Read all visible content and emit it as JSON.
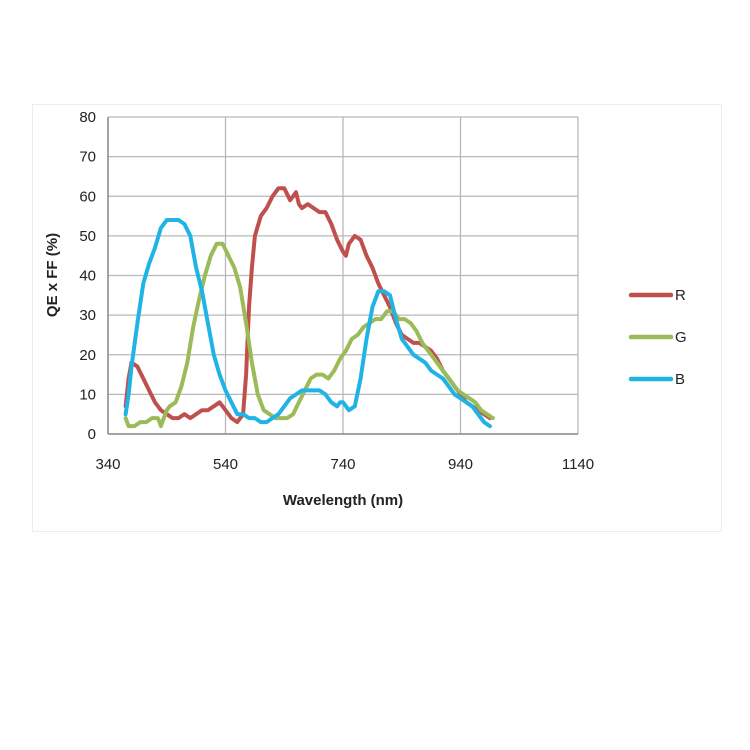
{
  "chart_data": {
    "type": "line",
    "title": "",
    "xlabel": "Wavelength (nm)",
    "ylabel": "QE x FF (%)",
    "xlim": [
      340,
      1140
    ],
    "ylim": [
      0,
      80
    ],
    "xticks": [
      340,
      540,
      740,
      940,
      1140
    ],
    "yticks": [
      0,
      10,
      20,
      30,
      40,
      50,
      60,
      70,
      80
    ],
    "grid": true,
    "legend": "right",
    "series": [
      {
        "name": "R",
        "color": "#c0504d",
        "points": [
          [
            370,
            7
          ],
          [
            375,
            14
          ],
          [
            380,
            18
          ],
          [
            390,
            17
          ],
          [
            400,
            14
          ],
          [
            410,
            11
          ],
          [
            420,
            8
          ],
          [
            430,
            6
          ],
          [
            440,
            5
          ],
          [
            450,
            4
          ],
          [
            460,
            4
          ],
          [
            470,
            5
          ],
          [
            480,
            4
          ],
          [
            490,
            5
          ],
          [
            500,
            6
          ],
          [
            510,
            6
          ],
          [
            520,
            7
          ],
          [
            530,
            8
          ],
          [
            540,
            6
          ],
          [
            550,
            4
          ],
          [
            560,
            3
          ],
          [
            570,
            5
          ],
          [
            575,
            15
          ],
          [
            580,
            32
          ],
          [
            585,
            42
          ],
          [
            590,
            50
          ],
          [
            600,
            55
          ],
          [
            610,
            57
          ],
          [
            620,
            60
          ],
          [
            630,
            62
          ],
          [
            640,
            62
          ],
          [
            650,
            59
          ],
          [
            655,
            60
          ],
          [
            660,
            61
          ],
          [
            665,
            58
          ],
          [
            670,
            57
          ],
          [
            680,
            58
          ],
          [
            690,
            57
          ],
          [
            700,
            56
          ],
          [
            710,
            56
          ],
          [
            720,
            53
          ],
          [
            730,
            49
          ],
          [
            740,
            46
          ],
          [
            745,
            45
          ],
          [
            750,
            48
          ],
          [
            760,
            50
          ],
          [
            770,
            49
          ],
          [
            780,
            45
          ],
          [
            790,
            42
          ],
          [
            800,
            38
          ],
          [
            810,
            35
          ],
          [
            820,
            32
          ],
          [
            830,
            28
          ],
          [
            840,
            25
          ],
          [
            850,
            24
          ],
          [
            860,
            23
          ],
          [
            870,
            23
          ],
          [
            880,
            22
          ],
          [
            890,
            21
          ],
          [
            900,
            19
          ],
          [
            910,
            16
          ],
          [
            920,
            14
          ],
          [
            930,
            12
          ],
          [
            940,
            10
          ],
          [
            950,
            8
          ],
          [
            960,
            7
          ],
          [
            970,
            6
          ],
          [
            980,
            5
          ],
          [
            990,
            4
          ]
        ]
      },
      {
        "name": "G",
        "color": "#9bbb59",
        "points": [
          [
            370,
            4
          ],
          [
            375,
            2
          ],
          [
            385,
            2
          ],
          [
            395,
            3
          ],
          [
            405,
            3
          ],
          [
            415,
            4
          ],
          [
            425,
            4
          ],
          [
            430,
            2
          ],
          [
            435,
            4
          ],
          [
            440,
            6
          ],
          [
            445,
            7
          ],
          [
            455,
            8
          ],
          [
            465,
            12
          ],
          [
            475,
            18
          ],
          [
            485,
            27
          ],
          [
            495,
            34
          ],
          [
            505,
            40
          ],
          [
            515,
            45
          ],
          [
            525,
            48
          ],
          [
            535,
            48
          ],
          [
            545,
            45
          ],
          [
            555,
            42
          ],
          [
            565,
            37
          ],
          [
            575,
            28
          ],
          [
            585,
            18
          ],
          [
            595,
            10
          ],
          [
            605,
            6
          ],
          [
            615,
            5
          ],
          [
            625,
            4
          ],
          [
            635,
            4
          ],
          [
            645,
            4
          ],
          [
            655,
            5
          ],
          [
            665,
            8
          ],
          [
            675,
            11
          ],
          [
            685,
            14
          ],
          [
            695,
            15
          ],
          [
            705,
            15
          ],
          [
            715,
            14
          ],
          [
            725,
            16
          ],
          [
            735,
            19
          ],
          [
            745,
            21
          ],
          [
            755,
            24
          ],
          [
            765,
            25
          ],
          [
            775,
            27
          ],
          [
            785,
            28
          ],
          [
            795,
            29
          ],
          [
            805,
            29
          ],
          [
            815,
            31
          ],
          [
            825,
            31
          ],
          [
            835,
            29
          ],
          [
            845,
            29
          ],
          [
            855,
            28
          ],
          [
            865,
            26
          ],
          [
            875,
            23
          ],
          [
            885,
            21
          ],
          [
            895,
            19
          ],
          [
            905,
            17
          ],
          [
            915,
            15
          ],
          [
            925,
            13
          ],
          [
            935,
            11
          ],
          [
            945,
            10
          ],
          [
            955,
            9
          ],
          [
            965,
            8
          ],
          [
            975,
            6
          ],
          [
            985,
            5
          ],
          [
            995,
            4
          ]
        ]
      },
      {
        "name": "B",
        "color": "#1fb3e6",
        "points": [
          [
            370,
            5
          ],
          [
            375,
            10
          ],
          [
            380,
            17
          ],
          [
            390,
            28
          ],
          [
            400,
            38
          ],
          [
            410,
            43
          ],
          [
            420,
            47
          ],
          [
            430,
            52
          ],
          [
            440,
            54
          ],
          [
            450,
            54
          ],
          [
            460,
            54
          ],
          [
            470,
            53
          ],
          [
            480,
            50
          ],
          [
            490,
            42
          ],
          [
            500,
            36
          ],
          [
            510,
            28
          ],
          [
            520,
            20
          ],
          [
            530,
            15
          ],
          [
            540,
            11
          ],
          [
            550,
            8
          ],
          [
            560,
            5
          ],
          [
            570,
            5
          ],
          [
            580,
            4
          ],
          [
            590,
            4
          ],
          [
            600,
            3
          ],
          [
            610,
            3
          ],
          [
            620,
            4
          ],
          [
            630,
            5
          ],
          [
            640,
            7
          ],
          [
            650,
            9
          ],
          [
            660,
            10
          ],
          [
            670,
            11
          ],
          [
            680,
            11
          ],
          [
            690,
            11
          ],
          [
            700,
            11
          ],
          [
            710,
            10
          ],
          [
            720,
            8
          ],
          [
            730,
            7
          ],
          [
            735,
            8
          ],
          [
            740,
            8
          ],
          [
            750,
            6
          ],
          [
            760,
            7
          ],
          [
            770,
            14
          ],
          [
            780,
            24
          ],
          [
            790,
            32
          ],
          [
            800,
            36
          ],
          [
            810,
            36
          ],
          [
            820,
            35
          ],
          [
            830,
            29
          ],
          [
            840,
            24
          ],
          [
            850,
            22
          ],
          [
            860,
            20
          ],
          [
            870,
            19
          ],
          [
            880,
            18
          ],
          [
            890,
            16
          ],
          [
            900,
            15
          ],
          [
            910,
            14
          ],
          [
            920,
            12
          ],
          [
            930,
            10
          ],
          [
            940,
            9
          ],
          [
            950,
            8
          ],
          [
            960,
            7
          ],
          [
            970,
            5
          ],
          [
            980,
            3
          ],
          [
            990,
            2
          ]
        ]
      }
    ]
  }
}
